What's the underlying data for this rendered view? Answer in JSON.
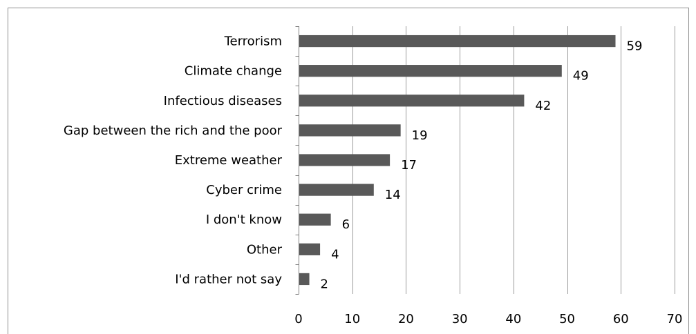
{
  "chart_data": {
    "type": "bar",
    "orientation": "horizontal",
    "title": "",
    "xlabel": "",
    "ylabel": "",
    "categories": [
      "Terrorism",
      "Climate change",
      "Infectious diseases",
      "Gap between the rich and the poor",
      "Extreme weather",
      "Cyber crime",
      "I don't know",
      "Other",
      "I'd rather not say"
    ],
    "values": [
      59,
      49,
      42,
      19,
      17,
      14,
      6,
      4,
      2
    ],
    "data_labels": [
      "59",
      "49",
      "42",
      "19",
      "17",
      "14",
      "6",
      "4",
      "2"
    ],
    "xlim": [
      0,
      70
    ],
    "xticks": [
      0,
      10,
      20,
      30,
      40,
      50,
      60,
      70
    ],
    "xtick_labels": [
      "0",
      "10",
      "20",
      "30",
      "40",
      "50",
      "60",
      "70"
    ],
    "grid": "vertical major gridlines",
    "legend": "none",
    "colors": {
      "bar": "#595959",
      "gridline": "#9a9a9a",
      "axis": "#7f7f7f",
      "frame": "#8c8c8c",
      "text": "#000000"
    }
  }
}
